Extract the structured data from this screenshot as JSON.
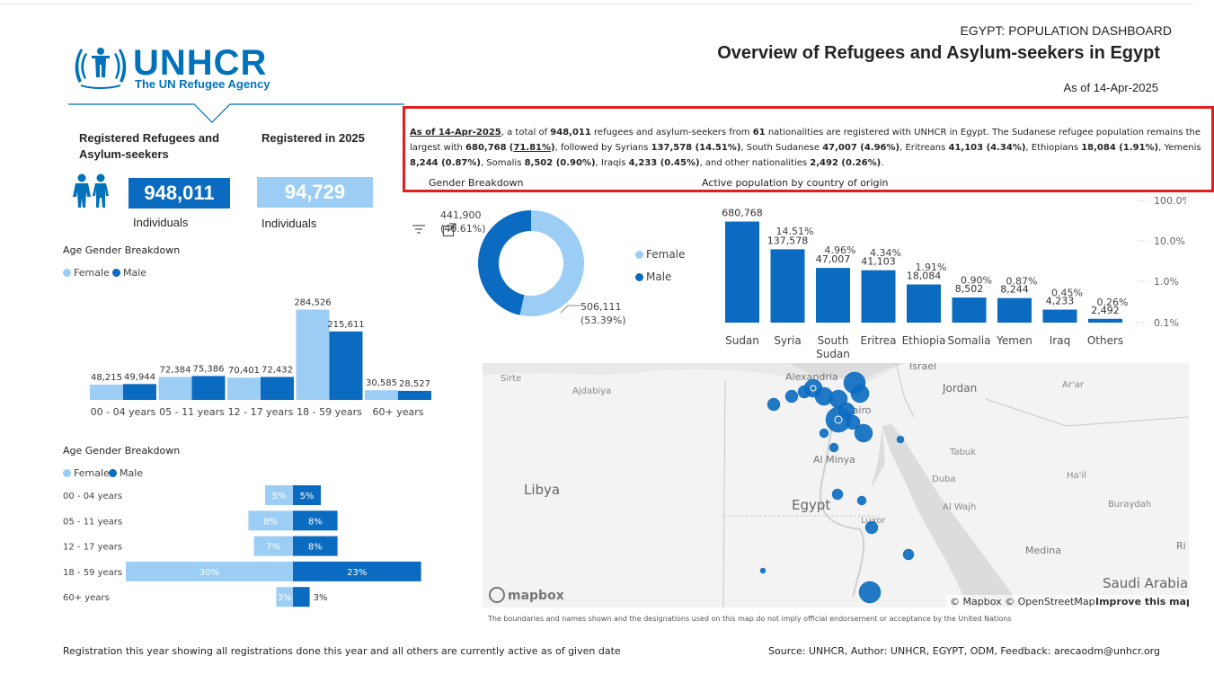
{
  "header": {
    "super_title": "EGYPT: POPULATION DASHBOARD",
    "title": "Overview of Refugees and Asylum-seekers in Egypt",
    "as_of": "As of 14-Apr-2025"
  },
  "logo": {
    "word": "UNHCR",
    "subtitle": "The UN Refugee Agency"
  },
  "kpis": {
    "registered_label": "Registered Refugees and Asylum-seekers",
    "registered_value": "948,011",
    "registered_sub": "Individuals",
    "year_label": "Registered in 2025",
    "year_value": "94,729",
    "year_sub": "Individuals"
  },
  "summary": {
    "as_of": "As of 14-Apr-2025",
    "t1": ", a total of ",
    "total": "948,011",
    "t2": " refugees and asylum-seekers from ",
    "nat": "61",
    "t3": " nationalities are registered with UNHCR in Egypt. The Sudanese refugee population remains the largest with ",
    "sudan": "680,768",
    "sudan_pct": "71.81%",
    "t4": ", followed by Syrians ",
    "syria": "137,578 (14.51%)",
    "t5": ", South Sudanese ",
    "ssudan": "47,007 (4.96%)",
    "t6": ", Eritreans ",
    "eritrea": "41,103 (4.34%)",
    "t7": ", Ethiopians ",
    "ethiopia": "18,084 (1.91%)",
    "t8": ", Yemenis ",
    "yemen": "8,244 (0.87%)",
    "t9": ", Somalis ",
    "somalia": "8,502 (0.90%)",
    "t10": ", Iraqis ",
    "iraq": "4,233 (0.45%)",
    "t11": ", and other nationalities ",
    "others": "2,492 (0.26%)",
    "t12": ".",
    "gender_title": "Gender Breakdown",
    "country_title": "Active population by country of origin"
  },
  "gender": {
    "legend_female": "Female",
    "legend_male": "Male",
    "male_label_1": "441,900",
    "male_label_2": "(46.61%)",
    "female_label_1": "506,111",
    "female_label_2": "(53.39%)",
    "colors": {
      "female": "#9ccef5",
      "male": "#0a6bc1"
    }
  },
  "age_chart": {
    "title": "Age Gender Breakdown",
    "legend_female": "Female",
    "legend_male": "Male"
  },
  "age_pyramid": {
    "title": "Age Gender Breakdown",
    "legend_female": "Female",
    "legend_male": "Male"
  },
  "map": {
    "places": [
      "Sirte",
      "Ajdabiya",
      "Alexandria",
      "Israel",
      "Jordan",
      "Ar'ar",
      "Cairo",
      "Al Minya",
      "Tabuk",
      "Libya",
      "Egypt",
      "Duba",
      "Ha'il",
      "Al Wajh",
      "Buraydah",
      "Luxor",
      "Medina",
      "Ri",
      "Saudi Arabia"
    ],
    "logo": "mapbox",
    "attribution": "© Mapbox © OpenStreetMap",
    "improve": "Improve this map",
    "disclaimer": "The boundaries and names shown and the designations used on this map do not imply official endorsement or acceptance by the United Nations"
  },
  "footer": {
    "left": "Registration this year showing all registrations done this year and all others are currently active as of given date",
    "right": "Source: UNHCR,  Author: UNHCR, EGYPT, ODM, Feedback: arecaodm@unhcr.org"
  },
  "chart_data": [
    {
      "type": "pie",
      "title": "Gender Breakdown",
      "categories": [
        "Female",
        "Male"
      ],
      "values": [
        506111,
        441900
      ],
      "percent_labels": [
        "53.39%",
        "46.61%"
      ]
    },
    {
      "type": "bar",
      "title": "Active population by country of origin",
      "scale": "log",
      "categories": [
        "Sudan",
        "Syria",
        "South Sudan",
        "Eritrea",
        "Ethiopia",
        "Somalia",
        "Yemen",
        "Iraq",
        "Others"
      ],
      "values": [
        680768,
        137578,
        47007,
        41103,
        18084,
        8502,
        8244,
        4233,
        2492
      ],
      "value_labels": [
        "680,768",
        "137,578",
        "47,007",
        "41,103",
        "18,084",
        "8,502",
        "8,244",
        "4,233",
        "2,492"
      ],
      "percent_labels": [
        "",
        "14.51%",
        "4.96%",
        "4.34%",
        "1.91%",
        "0.90%",
        "0.87%",
        "0.45%",
        "0.26%"
      ],
      "percents": [
        71.81,
        14.51,
        4.96,
        4.34,
        1.91,
        0.9,
        0.87,
        0.45,
        0.26
      ],
      "y2_ticks": [
        "100.0%",
        "10.0%",
        "1.0%",
        "0.1%"
      ]
    },
    {
      "type": "bar",
      "title": "Age Gender Breakdown",
      "categories": [
        "00 - 04 years",
        "05 - 11 years",
        "12 - 17 years",
        "18 - 59 years",
        "60+ years"
      ],
      "series": [
        {
          "name": "Female",
          "values": [
            48215,
            72384,
            70401,
            284526,
            30585
          ],
          "labels": [
            "48,215",
            "72,384",
            "70,401",
            "284,526",
            "30,585"
          ]
        },
        {
          "name": "Male",
          "values": [
            49944,
            75386,
            72432,
            215611,
            28527
          ],
          "labels": [
            "49,944",
            "75,386",
            "72,432",
            "215,611",
            "28,527"
          ]
        }
      ]
    },
    {
      "type": "bar",
      "title": "Age Gender Breakdown",
      "orientation": "horizontal-pyramid",
      "categories": [
        "00 - 04 years",
        "05 - 11 years",
        "12 - 17 years",
        "18 - 59 years",
        "60+ years"
      ],
      "series": [
        {
          "name": "Female",
          "values": [
            5,
            8,
            7,
            30,
            3
          ],
          "labels": [
            "5%",
            "8%",
            "7%",
            "30%",
            "3%"
          ]
        },
        {
          "name": "Male",
          "values": [
            5,
            8,
            8,
            23,
            3
          ],
          "labels": [
            "5%",
            "8%",
            "8%",
            "23%",
            "3%"
          ]
        }
      ]
    }
  ]
}
